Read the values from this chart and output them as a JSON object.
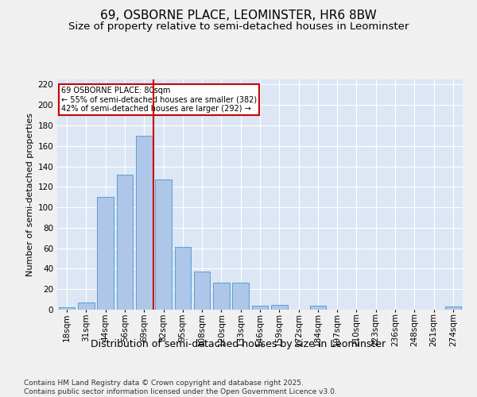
{
  "title1": "69, OSBORNE PLACE, LEOMINSTER, HR6 8BW",
  "title2": "Size of property relative to semi-detached houses in Leominster",
  "xlabel": "Distribution of semi-detached houses by size in Leominster",
  "ylabel": "Number of semi-detached properties",
  "categories": [
    "18sqm",
    "31sqm",
    "44sqm",
    "56sqm",
    "69sqm",
    "82sqm",
    "95sqm",
    "108sqm",
    "120sqm",
    "133sqm",
    "146sqm",
    "159sqm",
    "172sqm",
    "184sqm",
    "197sqm",
    "210sqm",
    "223sqm",
    "236sqm",
    "248sqm",
    "261sqm",
    "274sqm"
  ],
  "values": [
    2,
    7,
    110,
    132,
    170,
    127,
    61,
    37,
    26,
    26,
    4,
    5,
    0,
    4,
    0,
    0,
    0,
    0,
    0,
    0,
    3
  ],
  "bar_color": "#aec6e8",
  "bar_edge_color": "#5a9fd4",
  "vline_color": "#cc0000",
  "annotation_text": "69 OSBORNE PLACE: 80sqm\n← 55% of semi-detached houses are smaller (382)\n42% of semi-detached houses are larger (292) →",
  "annotation_box_color": "#cc0000",
  "ylim": [
    0,
    225
  ],
  "yticks": [
    0,
    20,
    40,
    60,
    80,
    100,
    120,
    140,
    160,
    180,
    200,
    220
  ],
  "background_color": "#dce6f5",
  "grid_color": "#ffffff",
  "fig_background": "#f0f0f0",
  "footer": "Contains HM Land Registry data © Crown copyright and database right 2025.\nContains public sector information licensed under the Open Government Licence v3.0.",
  "title1_fontsize": 11,
  "title2_fontsize": 9.5,
  "xlabel_fontsize": 9,
  "ylabel_fontsize": 8,
  "tick_fontsize": 7.5,
  "footer_fontsize": 6.5
}
